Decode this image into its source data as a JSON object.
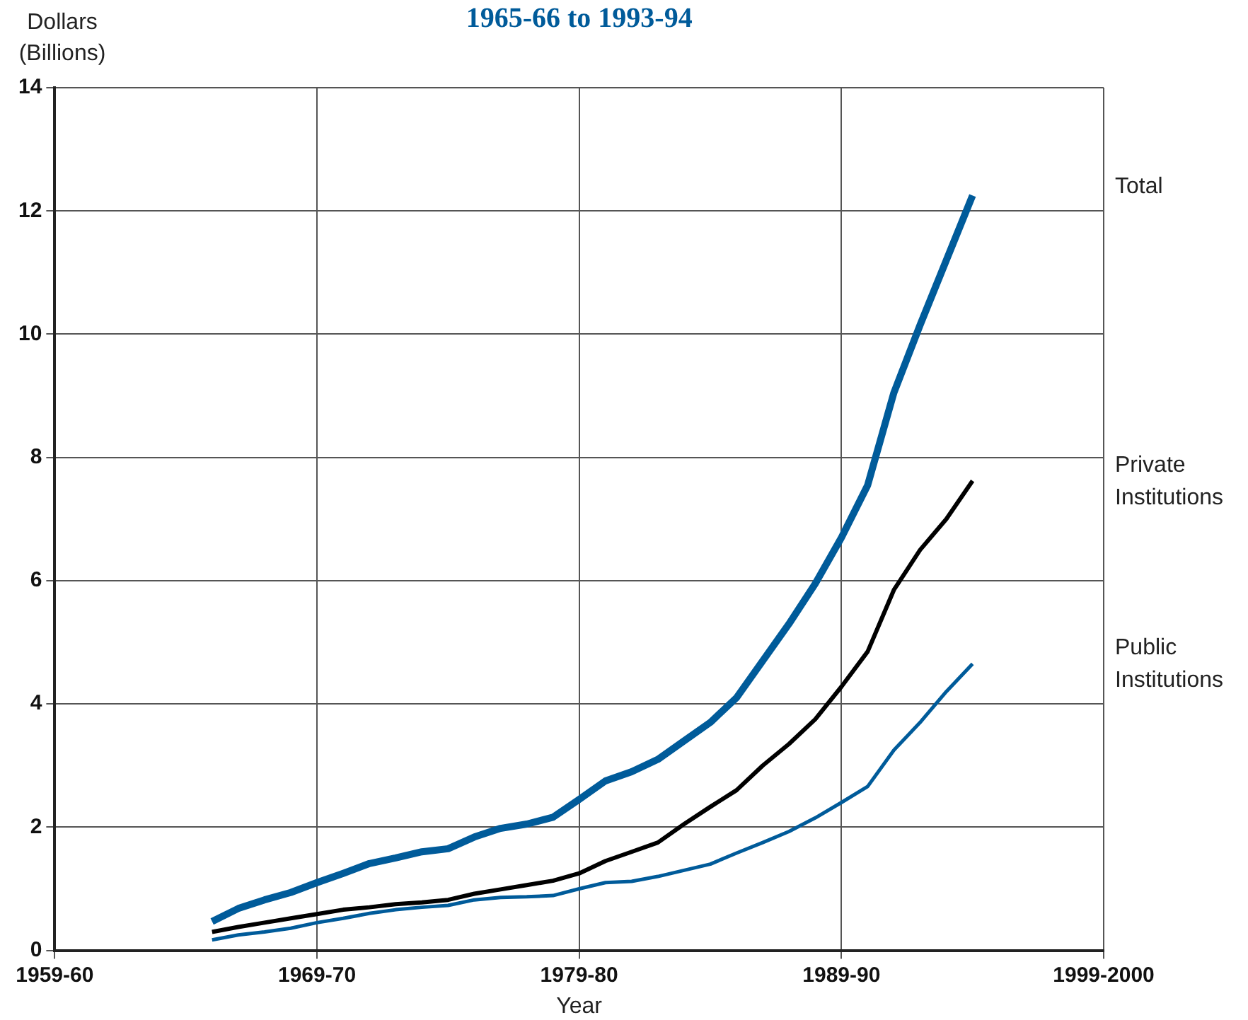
{
  "chart_data": {
    "type": "line",
    "title": "1965-66 to 1993-94",
    "xlabel": "Year",
    "ylabel": "Dollars (Billions)",
    "categories": [
      "1959-60",
      null,
      null,
      null,
      null,
      null,
      null,
      null,
      null,
      null,
      "1969-70",
      null,
      null,
      null,
      null,
      null,
      null,
      null,
      null,
      null,
      "1979-80",
      null,
      null,
      null,
      null,
      null,
      null,
      null,
      null,
      null,
      "1989-90",
      null,
      null,
      null,
      null,
      null,
      null,
      null,
      null,
      null,
      "1999-2000"
    ],
    "series": [
      {
        "name": "Total",
        "color": "#005b9a",
        "values": [
          null,
          null,
          null,
          null,
          null,
          null,
          0.47,
          0.68,
          0.82,
          0.94,
          1.1,
          1.25,
          1.41,
          1.5,
          1.6,
          1.65,
          1.84,
          1.98,
          2.05,
          2.16,
          2.45,
          2.75,
          2.9,
          3.1,
          3.4,
          3.7,
          4.1,
          4.7,
          5.3,
          5.95,
          6.7,
          7.55,
          9.05,
          10.15,
          11.2,
          12.25,
          null,
          null,
          null,
          null,
          null
        ]
      },
      {
        "name": "Private Institutions",
        "color": "#000000",
        "values": [
          null,
          null,
          null,
          null,
          null,
          null,
          0.3,
          0.38,
          0.45,
          0.52,
          0.59,
          0.66,
          0.7,
          0.75,
          0.78,
          0.82,
          0.92,
          0.99,
          1.06,
          1.13,
          1.25,
          1.45,
          1.6,
          1.75,
          2.05,
          2.33,
          2.6,
          3.0,
          3.35,
          3.75,
          4.28,
          4.85,
          5.85,
          6.5,
          7.0,
          7.62,
          null,
          null,
          null,
          null,
          null
        ]
      },
      {
        "name": "Public Institutions",
        "color": "#005b9a",
        "values": [
          null,
          null,
          null,
          null,
          null,
          null,
          0.17,
          0.25,
          0.3,
          0.36,
          0.45,
          0.52,
          0.6,
          0.66,
          0.7,
          0.73,
          0.82,
          0.86,
          0.87,
          0.89,
          1.0,
          1.1,
          1.12,
          1.2,
          1.3,
          1.4,
          1.58,
          1.75,
          1.93,
          2.15,
          2.4,
          2.66,
          3.25,
          3.7,
          4.2,
          4.65,
          null,
          null,
          null,
          null,
          null
        ]
      }
    ],
    "ylim": [
      0,
      14
    ],
    "yticks": [
      0,
      2,
      4,
      6,
      8,
      10,
      12,
      14
    ],
    "grid": true,
    "legend": false,
    "marker": "none",
    "line_style": "solid"
  }
}
